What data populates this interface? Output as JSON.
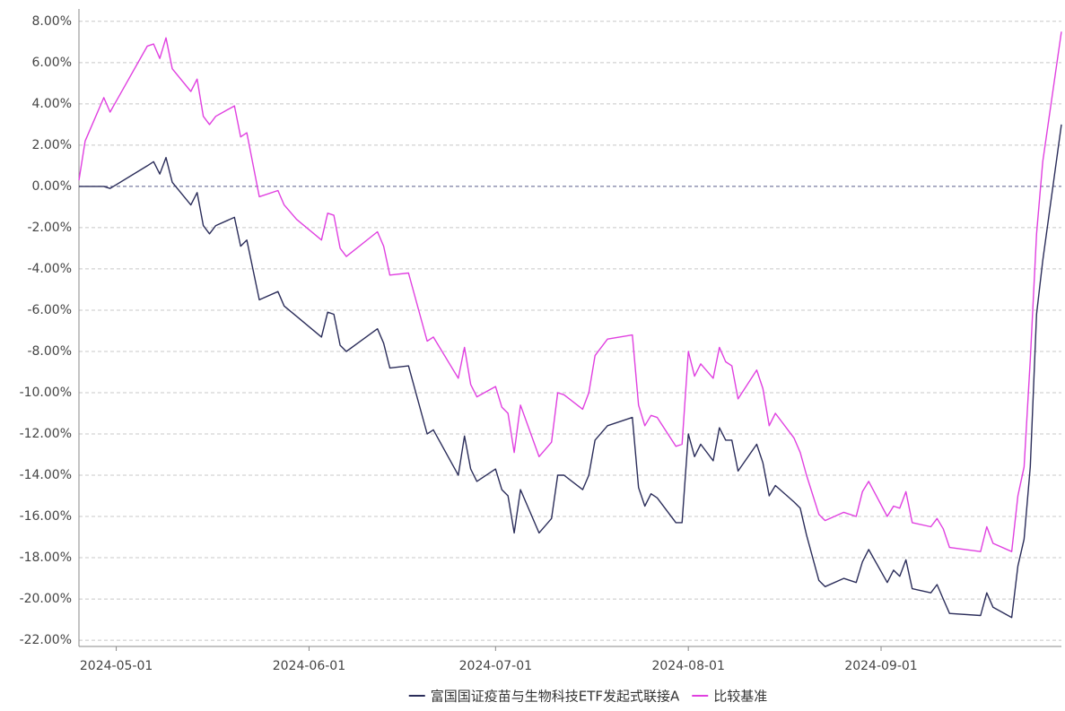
{
  "chart_data": {
    "type": "line",
    "x": [
      "2024-04-25",
      "2024-04-26",
      "2024-04-29",
      "2024-04-30",
      "2024-05-06",
      "2024-05-07",
      "2024-05-08",
      "2024-05-09",
      "2024-05-10",
      "2024-05-13",
      "2024-05-14",
      "2024-05-15",
      "2024-05-16",
      "2024-05-17",
      "2024-05-20",
      "2024-05-21",
      "2024-05-22",
      "2024-05-24",
      "2024-05-27",
      "2024-05-28",
      "2024-05-30",
      "2024-06-03",
      "2024-06-04",
      "2024-06-05",
      "2024-06-06",
      "2024-06-07",
      "2024-06-12",
      "2024-06-13",
      "2024-06-14",
      "2024-06-17",
      "2024-06-20",
      "2024-06-21",
      "2024-06-25",
      "2024-06-26",
      "2024-06-27",
      "2024-06-28",
      "2024-07-01",
      "2024-07-02",
      "2024-07-03",
      "2024-07-04",
      "2024-07-05",
      "2024-07-08",
      "2024-07-10",
      "2024-07-11",
      "2024-07-12",
      "2024-07-15",
      "2024-07-16",
      "2024-07-17",
      "2024-07-19",
      "2024-07-23",
      "2024-07-24",
      "2024-07-25",
      "2024-07-26",
      "2024-07-27",
      "2024-07-30",
      "2024-07-31",
      "2024-08-01",
      "2024-08-02",
      "2024-08-03",
      "2024-08-05",
      "2024-08-06",
      "2024-08-07",
      "2024-08-08",
      "2024-08-09",
      "2024-08-12",
      "2024-08-13",
      "2024-08-14",
      "2024-08-15",
      "2024-08-18",
      "2024-08-19",
      "2024-08-20",
      "2024-08-22",
      "2024-08-23",
      "2024-08-26",
      "2024-08-28",
      "2024-08-29",
      "2024-08-30",
      "2024-09-02",
      "2024-09-03",
      "2024-09-04",
      "2024-09-05",
      "2024-09-06",
      "2024-09-09",
      "2024-09-10",
      "2024-09-11",
      "2024-09-12",
      "2024-09-17",
      "2024-09-18",
      "2024-09-19",
      "2024-09-22",
      "2024-09-23",
      "2024-09-24",
      "2024-09-25",
      "2024-09-26",
      "2024-09-27",
      "2024-09-30"
    ],
    "series": [
      {
        "name": "富国国证疫苗与生物科技ETF发起式联接A",
        "color": "#2b2d5a",
        "values": [
          0,
          0,
          0,
          -0.1,
          1.0,
          1.2,
          0.6,
          1.4,
          0.2,
          -0.9,
          -0.3,
          -1.9,
          -2.3,
          -1.9,
          -1.5,
          -2.9,
          -2.6,
          -5.5,
          -5.1,
          -5.8,
          -6.3,
          -7.3,
          -6.1,
          -6.2,
          -7.7,
          -8.0,
          -6.9,
          -7.6,
          -8.8,
          -8.7,
          -12.0,
          -11.8,
          -14.0,
          -12.1,
          -13.7,
          -14.3,
          -13.7,
          -14.7,
          -15.0,
          -16.8,
          -14.7,
          -16.8,
          -16.1,
          -14.0,
          -14.0,
          -14.7,
          -14.0,
          -12.3,
          -11.6,
          -11.2,
          -14.6,
          -15.5,
          -14.9,
          -15.1,
          -16.3,
          -16.3,
          -12.0,
          -13.1,
          -12.5,
          -13.3,
          -11.7,
          -12.3,
          -12.3,
          -13.8,
          -12.5,
          -13.4,
          -15.0,
          -14.5,
          -15.3,
          -15.6,
          -16.9,
          -19.1,
          -19.4,
          -19.0,
          -19.2,
          -18.2,
          -17.6,
          -19.2,
          -18.6,
          -18.9,
          -18.1,
          -19.5,
          -19.7,
          -19.3,
          -20.0,
          -20.7,
          -20.8,
          -19.7,
          -20.4,
          -20.9,
          -18.4,
          -17.1,
          -13.6,
          -6.2,
          -3.6,
          3.0
        ]
      },
      {
        "name": "比较基准",
        "color": "#e040e0",
        "values": [
          0.3,
          2.2,
          4.3,
          3.6,
          6.8,
          6.9,
          6.2,
          7.2,
          5.7,
          4.6,
          5.2,
          3.4,
          3.0,
          3.4,
          3.9,
          2.4,
          2.6,
          -0.5,
          -0.2,
          -0.9,
          -1.6,
          -2.6,
          -1.3,
          -1.4,
          -3.0,
          -3.4,
          -2.2,
          -2.9,
          -4.3,
          -4.2,
          -7.5,
          -7.3,
          -9.3,
          -7.8,
          -9.6,
          -10.2,
          -9.7,
          -10.7,
          -11.0,
          -12.9,
          -10.6,
          -13.1,
          -12.4,
          -10.0,
          -10.1,
          -10.8,
          -10.0,
          -8.2,
          -7.4,
          -7.2,
          -10.6,
          -11.6,
          -11.1,
          -11.2,
          -12.6,
          -12.5,
          -8.0,
          -9.2,
          -8.6,
          -9.3,
          -7.8,
          -8.5,
          -8.7,
          -10.3,
          -8.9,
          -9.8,
          -11.6,
          -11.0,
          -12.2,
          -12.9,
          -14.0,
          -15.9,
          -16.2,
          -15.8,
          -16.0,
          -14.8,
          -14.3,
          -16.0,
          -15.5,
          -15.6,
          -14.8,
          -16.3,
          -16.5,
          -16.1,
          -16.6,
          -17.5,
          -17.7,
          -16.5,
          -17.3,
          -17.7,
          -15.0,
          -13.6,
          -8.4,
          -2.3,
          1.2,
          7.5
        ]
      }
    ],
    "xlim": [
      "2024-04-25",
      "2024-09-30"
    ],
    "xticks": [
      "2024-05-01",
      "2024-06-01",
      "2024-07-01",
      "2024-08-01",
      "2024-09-01"
    ],
    "ylim": [
      -22.3,
      8.6
    ],
    "yticks": [
      {
        "value": 8,
        "label": "8.00%"
      },
      {
        "value": 6,
        "label": "6.00%"
      },
      {
        "value": 4,
        "label": "4.00%"
      },
      {
        "value": 2,
        "label": "2.00%"
      },
      {
        "value": 0,
        "label": "0.00%"
      },
      {
        "value": -2,
        "label": "-2.00%"
      },
      {
        "value": -4,
        "label": "-4.00%"
      },
      {
        "value": -6,
        "label": "-6.00%"
      },
      {
        "value": -8,
        "label": "-8.00%"
      },
      {
        "value": -10,
        "label": "-10.00%"
      },
      {
        "value": -12,
        "label": "-12.00%"
      },
      {
        "value": -14,
        "label": "-14.00%"
      },
      {
        "value": -16,
        "label": "-16.00%"
      },
      {
        "value": -18,
        "label": "-18.00%"
      },
      {
        "value": -20,
        "label": "-20.00%"
      },
      {
        "value": -22,
        "label": "-22.00%"
      }
    ],
    "grid": true,
    "legend": "bottom"
  }
}
